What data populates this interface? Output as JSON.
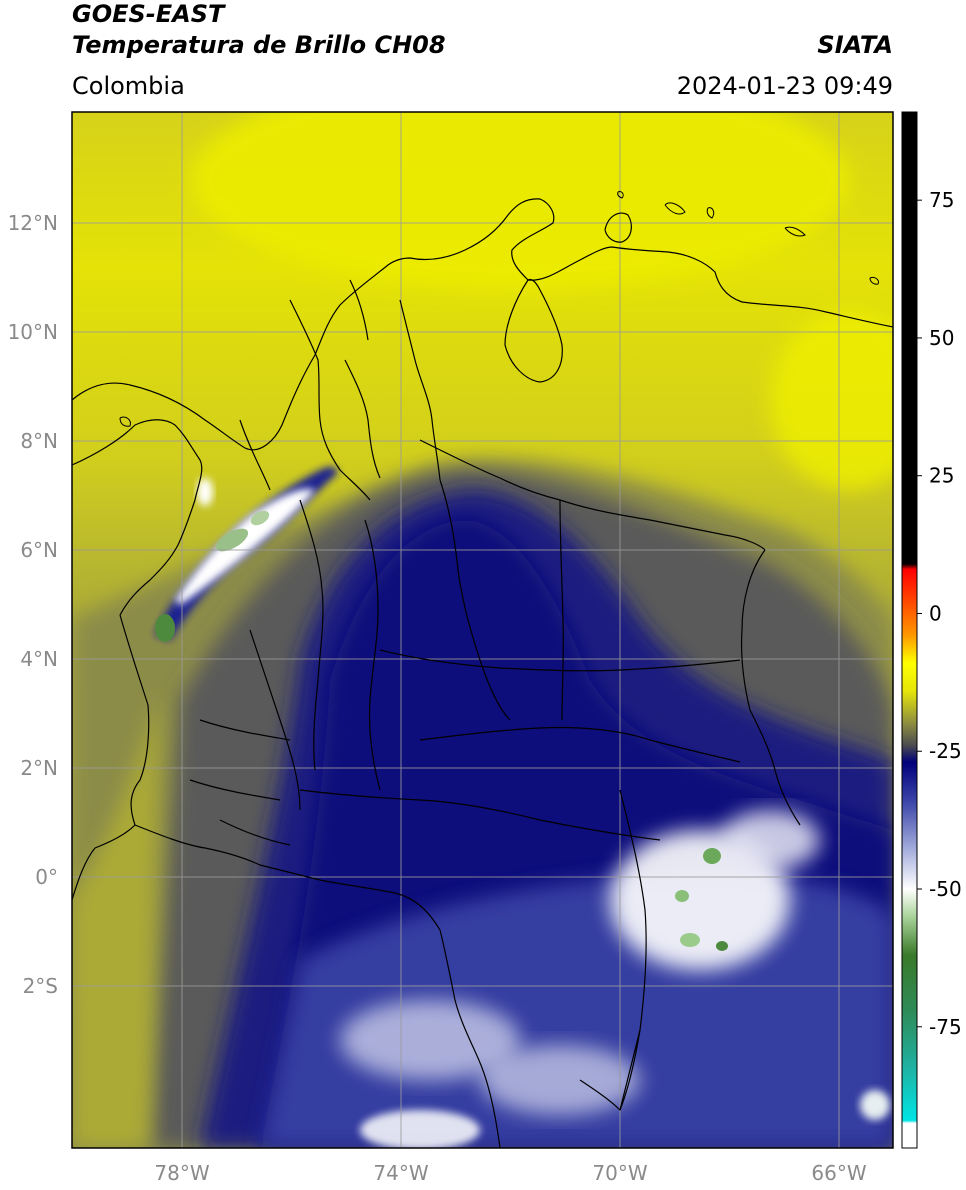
{
  "header": {
    "title_line1": "GOES-EAST",
    "title_line2": "Temperatura de Brillo CH08",
    "brand": "SIATA",
    "region": "Colombia",
    "timestamp": "2024-01-23 09:49"
  },
  "map": {
    "lat_labels": [
      "12°N",
      "10°N",
      "8°N",
      "6°N",
      "4°N",
      "2°N",
      "0°",
      "2°S"
    ],
    "lon_labels": [
      "78°W",
      "74°W",
      "70°W",
      "66°W"
    ],
    "extent": {
      "lon_min": -80,
      "lon_max": -65,
      "lat_min": -5.2,
      "lat_max": 14.0
    }
  },
  "colorbar": {
    "tick_labels": [
      "75",
      "50",
      "25",
      "0",
      "-25",
      "-50",
      "-75"
    ],
    "tick_values": [
      75,
      50,
      25,
      0,
      -25,
      -50,
      -75
    ],
    "vmin": -97,
    "vmax": 91,
    "stops": [
      {
        "value": -97,
        "color": "#ffffff"
      },
      {
        "value": -92.5,
        "color": "#ffffff"
      },
      {
        "value": -92,
        "color": "#00e5e5"
      },
      {
        "value": -82,
        "color": "#20b0a0"
      },
      {
        "value": -72,
        "color": "#2e8b57"
      },
      {
        "value": -62,
        "color": "#3a7a2a"
      },
      {
        "value": -55,
        "color": "#a9d49a"
      },
      {
        "value": -50,
        "color": "#ffffff"
      },
      {
        "value": -42,
        "color": "#9aa4d8"
      },
      {
        "value": -34,
        "color": "#3a44a8"
      },
      {
        "value": -27,
        "color": "#00007a"
      },
      {
        "value": -24,
        "color": "#4a4a50"
      },
      {
        "value": -20,
        "color": "#8c8c40"
      },
      {
        "value": -14,
        "color": "#e6e60a"
      },
      {
        "value": -9,
        "color": "#ffff00"
      },
      {
        "value": -4,
        "color": "#ff9900"
      },
      {
        "value": 2,
        "color": "#ff4a00"
      },
      {
        "value": 8,
        "color": "#ff0000"
      },
      {
        "value": 9,
        "color": "#000000"
      },
      {
        "value": 91,
        "color": "#000000"
      }
    ]
  },
  "colors": {
    "sea_yellow": "#d8d418",
    "bright_yellow": "#eded00",
    "olive": "#9a9a40",
    "gray": "#606060",
    "navy": "#000080",
    "mid_blue": "#3c46a8",
    "white_cloud": "#ffffff",
    "green_core": "#4e8a3e",
    "border": "#000000",
    "grid": "#9a9a9a"
  }
}
